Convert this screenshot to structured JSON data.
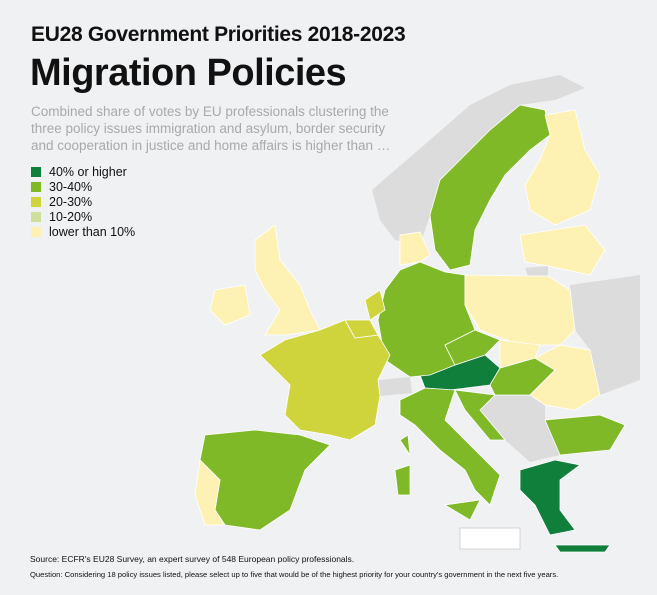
{
  "header": {
    "title": "EU28 Government Priorities 2018-2023",
    "headline": "Migration Policies",
    "subtitle": "Combined share of votes by EU professionals clustering the three policy issues immigration and asylum, border security and cooperation in justice and home affairs is higher than …"
  },
  "legend": [
    {
      "label": "40% or higher",
      "color": "#0f7f3b"
    },
    {
      "label": "30-40%",
      "color": "#7fb928"
    },
    {
      "label": "20-30%",
      "color": "#cfd43c"
    },
    {
      "label": "10-20%",
      "color": "#cfdf9c"
    },
    {
      "label": "lower than 10%",
      "color": "#fdf1b3"
    }
  ],
  "no_data_color": "#dcdcdc",
  "map": {
    "AT": 0,
    "GR": 0,
    "CY": 0,
    "SE": 1,
    "DE": 1,
    "CZ": 1,
    "HU": 1,
    "IT": 1,
    "ES": 1,
    "SI_HR": 1,
    "BG": 1,
    "FR": 2,
    "BE": 2,
    "NL": 2,
    "FI": 4,
    "BALTICS": 4,
    "PL": 4,
    "SK": 4,
    "RO": 4,
    "UK": 4,
    "IE": 4,
    "PT": 4,
    "DK": 4
  },
  "footer": {
    "source": "Source: ECFR's EU28 Survey, an expert survey of 548 European policy professionals.",
    "question": "Question: Considering 18 policy issues listed, please select up to five that would be of the highest priority for your country's government in the next five years."
  }
}
